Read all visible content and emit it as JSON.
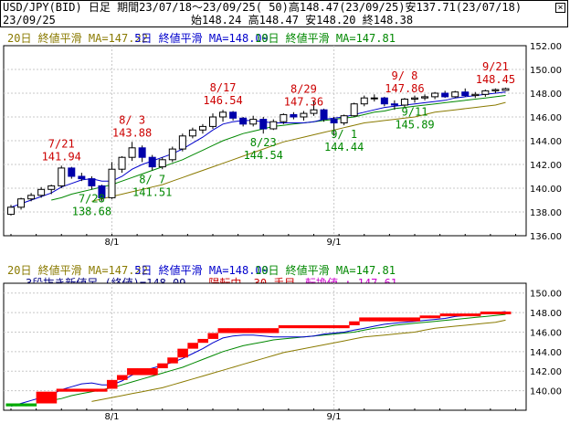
{
  "header": {
    "line1": "USD/JPY(BID) 日足 期間23/07/18～23/09/25( 50)高148.47(23/09/25)安137.71(23/07/18)",
    "date": "23/09/25",
    "values": "始148.24 高148.47 安148.20 終148.38"
  },
  "colors": {
    "up": "#ffffff",
    "down": "#0000aa",
    "ma20": "#8a7a00",
    "ma5": "#0000cc",
    "ma10": "#008800",
    "peak": "#cc0000",
    "trough": "#008800",
    "red_brick": "#ff0000",
    "green_brick": "#00aa00",
    "grid": "#c8c8c8"
  },
  "chart_data": [
    {
      "type": "candlestick",
      "legend": [
        {
          "text": "20日 終値平滑 MA=147.22",
          "color": "#8a7a00"
        },
        {
          "text": "5日 終値平滑 MA=148.09",
          "color": "#0000cc"
        },
        {
          "text": "10日 終値平滑 MA=147.81",
          "color": "#008800"
        }
      ],
      "ylim": [
        136,
        153
      ],
      "yticks": [
        "136.00",
        "138.00",
        "140.00",
        "142.00",
        "144.00",
        "146.00",
        "148.00",
        "150.00",
        "152.00"
      ],
      "xticks": [
        {
          "i": 10,
          "label": "8/1"
        },
        {
          "i": 32,
          "label": "9/1"
        }
      ],
      "ohlc": [
        [
          137.8,
          138.6,
          137.7,
          138.4
        ],
        [
          138.4,
          139.2,
          138.2,
          139.1
        ],
        [
          139.1,
          139.6,
          138.9,
          139.4
        ],
        [
          139.4,
          140.1,
          139.2,
          139.9
        ],
        [
          139.9,
          140.3,
          139.5,
          140.2
        ],
        [
          140.2,
          141.9,
          140.0,
          141.7
        ],
        [
          141.7,
          141.8,
          140.8,
          141.0
        ],
        [
          141.0,
          141.3,
          140.6,
          140.8
        ],
        [
          140.8,
          141.0,
          139.9,
          140.2
        ],
        [
          140.2,
          140.3,
          138.9,
          139.2
        ],
        [
          139.2,
          142.2,
          139.1,
          141.6
        ],
        [
          141.6,
          142.7,
          141.3,
          142.6
        ],
        [
          142.6,
          143.9,
          142.3,
          143.4
        ],
        [
          143.4,
          143.6,
          142.2,
          142.6
        ],
        [
          142.6,
          142.8,
          141.5,
          141.8
        ],
        [
          141.8,
          142.6,
          141.6,
          142.4
        ],
        [
          142.4,
          143.5,
          142.2,
          143.3
        ],
        [
          143.3,
          144.6,
          143.1,
          144.4
        ],
        [
          144.4,
          145.1,
          144.2,
          144.9
        ],
        [
          144.9,
          145.4,
          144.6,
          145.2
        ],
        [
          145.2,
          146.3,
          145.0,
          146.0
        ],
        [
          146.0,
          146.6,
          145.6,
          146.4
        ],
        [
          146.4,
          146.5,
          145.7,
          145.9
        ],
        [
          145.9,
          146.0,
          145.2,
          145.4
        ],
        [
          145.4,
          146.1,
          145.2,
          145.8
        ],
        [
          145.8,
          146.0,
          144.6,
          145.0
        ],
        [
          145.0,
          145.8,
          144.9,
          145.6
        ],
        [
          145.6,
          146.3,
          145.4,
          146.2
        ],
        [
          146.2,
          146.4,
          145.8,
          146.0
        ],
        [
          146.0,
          146.5,
          145.7,
          146.3
        ],
        [
          146.3,
          147.4,
          146.1,
          146.6
        ],
        [
          146.6,
          146.7,
          145.6,
          145.8
        ],
        [
          145.8,
          146.0,
          144.4,
          145.5
        ],
        [
          145.5,
          146.2,
          145.3,
          146.1
        ],
        [
          146.1,
          147.2,
          146.0,
          147.1
        ],
        [
          147.1,
          147.8,
          146.9,
          147.6
        ],
        [
          147.6,
          147.9,
          147.3,
          147.6
        ],
        [
          147.6,
          147.7,
          146.9,
          147.1
        ],
        [
          147.1,
          147.4,
          146.6,
          147.0
        ],
        [
          147.0,
          147.6,
          146.8,
          147.5
        ],
        [
          147.5,
          147.8,
          147.2,
          147.6
        ],
        [
          147.6,
          147.9,
          147.4,
          147.7
        ],
        [
          147.7,
          148.1,
          147.5,
          148.0
        ],
        [
          148.0,
          148.2,
          147.6,
          147.7
        ],
        [
          147.7,
          148.2,
          147.6,
          148.1
        ],
        [
          148.1,
          148.4,
          147.7,
          147.8
        ],
        [
          147.8,
          148.1,
          147.6,
          147.9
        ],
        [
          147.9,
          148.3,
          147.7,
          148.2
        ],
        [
          148.2,
          148.4,
          148.0,
          148.3
        ],
        [
          148.24,
          148.47,
          148.2,
          148.38
        ]
      ],
      "ma5": [
        138.4,
        138.7,
        139.0,
        139.3,
        139.6,
        140.1,
        140.4,
        140.7,
        140.8,
        140.6,
        140.6,
        141.0,
        141.6,
        142.0,
        142.3,
        142.6,
        142.9,
        143.3,
        143.8,
        144.3,
        144.9,
        145.4,
        145.6,
        145.7,
        145.7,
        145.6,
        145.5,
        145.5,
        145.5,
        145.5,
        145.6,
        145.8,
        145.9,
        146.0,
        146.2,
        146.4,
        146.6,
        146.8,
        146.9,
        147.0,
        147.1,
        147.2,
        147.3,
        147.4,
        147.6,
        147.7,
        147.8,
        147.9,
        148.0,
        148.1
      ],
      "ma10": [
        null,
        null,
        null,
        null,
        139.0,
        139.2,
        139.5,
        139.7,
        139.9,
        140.1,
        140.3,
        140.6,
        140.9,
        141.2,
        141.5,
        141.8,
        142.1,
        142.4,
        142.8,
        143.2,
        143.6,
        144.0,
        144.3,
        144.6,
        144.8,
        145.0,
        145.2,
        145.3,
        145.4,
        145.5,
        145.6,
        145.7,
        145.8,
        145.9,
        146.0,
        146.2,
        146.4,
        146.5,
        146.7,
        146.8,
        146.9,
        147.0,
        147.1,
        147.2,
        147.3,
        147.4,
        147.5,
        147.6,
        147.7,
        147.81
      ],
      "ma20": [
        null,
        null,
        null,
        null,
        null,
        null,
        null,
        null,
        138.9,
        139.1,
        139.3,
        139.5,
        139.7,
        139.9,
        140.1,
        140.3,
        140.6,
        140.9,
        141.2,
        141.5,
        141.8,
        142.1,
        142.4,
        142.7,
        143.0,
        143.3,
        143.6,
        143.9,
        144.1,
        144.3,
        144.5,
        144.7,
        144.9,
        145.1,
        145.3,
        145.5,
        145.6,
        145.7,
        145.8,
        145.9,
        146.0,
        146.2,
        146.4,
        146.5,
        146.6,
        146.7,
        146.8,
        146.9,
        147.0,
        147.22
      ],
      "annotations": [
        {
          "i": 5,
          "date": "7/21",
          "value": "141.94",
          "kind": "peak"
        },
        {
          "i": 8,
          "date": "7/28",
          "value": "138.68",
          "kind": "trough"
        },
        {
          "i": 12,
          "date": "8/ 3",
          "value": "143.88",
          "kind": "peak"
        },
        {
          "i": 14,
          "date": "8/ 7",
          "value": "141.51",
          "kind": "trough"
        },
        {
          "i": 21,
          "date": "8/17",
          "value": "146.54",
          "kind": "peak"
        },
        {
          "i": 25,
          "date": "8/23",
          "value": "144.54",
          "kind": "trough"
        },
        {
          "i": 29,
          "date": "8/29",
          "value": "147.36",
          "kind": "peak"
        },
        {
          "i": 33,
          "date": "9/ 1",
          "value": "144.44",
          "kind": "trough"
        },
        {
          "i": 39,
          "date": "9/ 8",
          "value": "147.86",
          "kind": "peak"
        },
        {
          "i": 40,
          "date": "9/11",
          "value": "145.89",
          "kind": "trough"
        },
        {
          "i": 48,
          "date": "9/21",
          "value": "148.45",
          "kind": "peak"
        }
      ]
    },
    {
      "type": "three-line-break",
      "legend": [
        {
          "text": "20日 終値平滑 MA=147.22",
          "color": "#8a7a00"
        },
        {
          "text": "5日 終値平滑 MA=148.09",
          "color": "#0000cc"
        },
        {
          "text": "10日 終値平滑 MA=147.81",
          "color": "#008800"
        }
      ],
      "status_parts": [
        {
          "text": "3段抜き新値足 (終値)=148.09",
          "color": "#000080"
        },
        {
          "text": "陽転中",
          "color": "#cc0000"
        },
        {
          "text": "30 手目",
          "color": "#cc0000"
        },
        {
          "text": "転換値 : 147.61",
          "color": "#cc00cc"
        }
      ],
      "ylim": [
        138,
        151
      ],
      "yticks": [
        "140.00",
        "142.00",
        "144.00",
        "146.00",
        "148.00",
        "150.00"
      ],
      "xticks": [
        {
          "i": 10,
          "label": "8/1"
        },
        {
          "i": 32,
          "label": "9/1"
        }
      ],
      "bricks": [
        {
          "i": 0,
          "lo": 138.4,
          "hi": 138.7,
          "dir": "down"
        },
        {
          "i": 1,
          "lo": 138.4,
          "hi": 138.7,
          "dir": "down"
        },
        {
          "i": 2,
          "lo": 138.4,
          "hi": 138.7,
          "dir": "down"
        },
        {
          "i": 3,
          "lo": 138.7,
          "hi": 139.9,
          "dir": "up"
        },
        {
          "i": 4,
          "lo": 138.7,
          "hi": 139.9,
          "dir": "up"
        },
        {
          "i": 5,
          "lo": 139.9,
          "hi": 140.2,
          "dir": "up"
        },
        {
          "i": 6,
          "lo": 139.9,
          "hi": 140.2,
          "dir": "up"
        },
        {
          "i": 7,
          "lo": 139.9,
          "hi": 140.2,
          "dir": "up"
        },
        {
          "i": 8,
          "lo": 139.9,
          "hi": 140.2,
          "dir": "up"
        },
        {
          "i": 9,
          "lo": 139.9,
          "hi": 140.2,
          "dir": "up"
        },
        {
          "i": 10,
          "lo": 140.2,
          "hi": 141.1,
          "dir": "up"
        },
        {
          "i": 11,
          "lo": 141.1,
          "hi": 141.6,
          "dir": "up"
        },
        {
          "i": 12,
          "lo": 141.6,
          "hi": 142.3,
          "dir": "up"
        },
        {
          "i": 13,
          "lo": 141.6,
          "hi": 142.3,
          "dir": "up"
        },
        {
          "i": 14,
          "lo": 141.6,
          "hi": 142.3,
          "dir": "up"
        },
        {
          "i": 15,
          "lo": 142.3,
          "hi": 142.8,
          "dir": "up"
        },
        {
          "i": 16,
          "lo": 142.8,
          "hi": 143.4,
          "dir": "up"
        },
        {
          "i": 17,
          "lo": 143.4,
          "hi": 144.3,
          "dir": "up"
        },
        {
          "i": 18,
          "lo": 144.3,
          "hi": 144.9,
          "dir": "up"
        },
        {
          "i": 19,
          "lo": 144.9,
          "hi": 145.3,
          "dir": "up"
        },
        {
          "i": 20,
          "lo": 145.3,
          "hi": 145.9,
          "dir": "up"
        },
        {
          "i": 21,
          "lo": 145.9,
          "hi": 146.4,
          "dir": "up"
        },
        {
          "i": 22,
          "lo": 145.9,
          "hi": 146.4,
          "dir": "up"
        },
        {
          "i": 23,
          "lo": 145.9,
          "hi": 146.4,
          "dir": "up"
        },
        {
          "i": 24,
          "lo": 145.9,
          "hi": 146.4,
          "dir": "up"
        },
        {
          "i": 25,
          "lo": 145.9,
          "hi": 146.4,
          "dir": "up"
        },
        {
          "i": 26,
          "lo": 145.9,
          "hi": 146.4,
          "dir": "up"
        },
        {
          "i": 27,
          "lo": 146.4,
          "hi": 146.7,
          "dir": "up"
        },
        {
          "i": 28,
          "lo": 146.4,
          "hi": 146.7,
          "dir": "up"
        },
        {
          "i": 29,
          "lo": 146.4,
          "hi": 146.7,
          "dir": "up"
        },
        {
          "i": 30,
          "lo": 146.4,
          "hi": 146.7,
          "dir": "up"
        },
        {
          "i": 31,
          "lo": 146.4,
          "hi": 146.7,
          "dir": "up"
        },
        {
          "i": 32,
          "lo": 146.4,
          "hi": 146.7,
          "dir": "up"
        },
        {
          "i": 33,
          "lo": 146.4,
          "hi": 146.7,
          "dir": "up"
        },
        {
          "i": 34,
          "lo": 146.7,
          "hi": 147.1,
          "dir": "up"
        },
        {
          "i": 35,
          "lo": 147.1,
          "hi": 147.5,
          "dir": "up"
        },
        {
          "i": 36,
          "lo": 147.1,
          "hi": 147.5,
          "dir": "up"
        },
        {
          "i": 37,
          "lo": 147.1,
          "hi": 147.5,
          "dir": "up"
        },
        {
          "i": 38,
          "lo": 147.1,
          "hi": 147.5,
          "dir": "up"
        },
        {
          "i": 39,
          "lo": 147.1,
          "hi": 147.5,
          "dir": "up"
        },
        {
          "i": 40,
          "lo": 147.1,
          "hi": 147.5,
          "dir": "up"
        },
        {
          "i": 41,
          "lo": 147.5,
          "hi": 147.7,
          "dir": "up"
        },
        {
          "i": 42,
          "lo": 147.5,
          "hi": 147.7,
          "dir": "up"
        },
        {
          "i": 43,
          "lo": 147.7,
          "hi": 147.9,
          "dir": "up"
        },
        {
          "i": 44,
          "lo": 147.7,
          "hi": 147.9,
          "dir": "up"
        },
        {
          "i": 45,
          "lo": 147.7,
          "hi": 147.9,
          "dir": "up"
        },
        {
          "i": 46,
          "lo": 147.7,
          "hi": 147.9,
          "dir": "up"
        },
        {
          "i": 47,
          "lo": 147.9,
          "hi": 148.1,
          "dir": "up"
        },
        {
          "i": 48,
          "lo": 147.9,
          "hi": 148.1,
          "dir": "up"
        },
        {
          "i": 49,
          "lo": 147.9,
          "hi": 148.1,
          "dir": "up"
        }
      ]
    }
  ]
}
